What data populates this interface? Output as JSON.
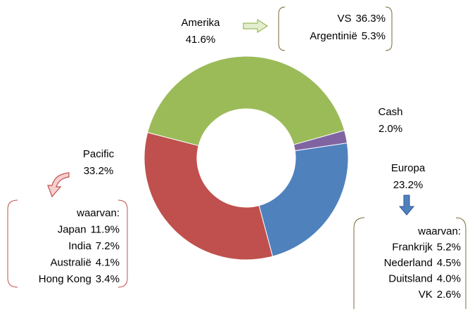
{
  "chart_data": {
    "type": "donut",
    "categories": [
      "Europa",
      "Pacific",
      "Amerika",
      "Cash"
    ],
    "values": [
      23.2,
      33.2,
      41.6,
      2.0
    ],
    "value_labels": [
      "23.2%",
      "33.2%",
      "41.6%",
      "2.0%"
    ],
    "colors": [
      "#4f81bd",
      "#c0504d",
      "#9bbb59",
      "#8064a2"
    ],
    "breakdowns": [
      {
        "items": [
          {
            "name": "VS",
            "value": "36.3%"
          },
          {
            "name": "Argentinië",
            "value": "5.3%"
          }
        ]
      },
      {
        "header": "waarvan:",
        "items": [
          {
            "name": "Frankrijk",
            "value": "5.2%"
          },
          {
            "name": "Nederland",
            "value": "4.5%"
          },
          {
            "name": "Duitsland",
            "value": "4.0%"
          },
          {
            "name": "VK",
            "value": "2.6%"
          }
        ]
      },
      {
        "header": "waarvan:",
        "items": [
          {
            "name": "Japan",
            "value": "11.9%"
          },
          {
            "name": "India",
            "value": "7.2%"
          },
          {
            "name": "Australië",
            "value": "4.1%"
          },
          {
            "name": "Hong Kong",
            "value": "3.4%"
          }
        ]
      }
    ]
  }
}
